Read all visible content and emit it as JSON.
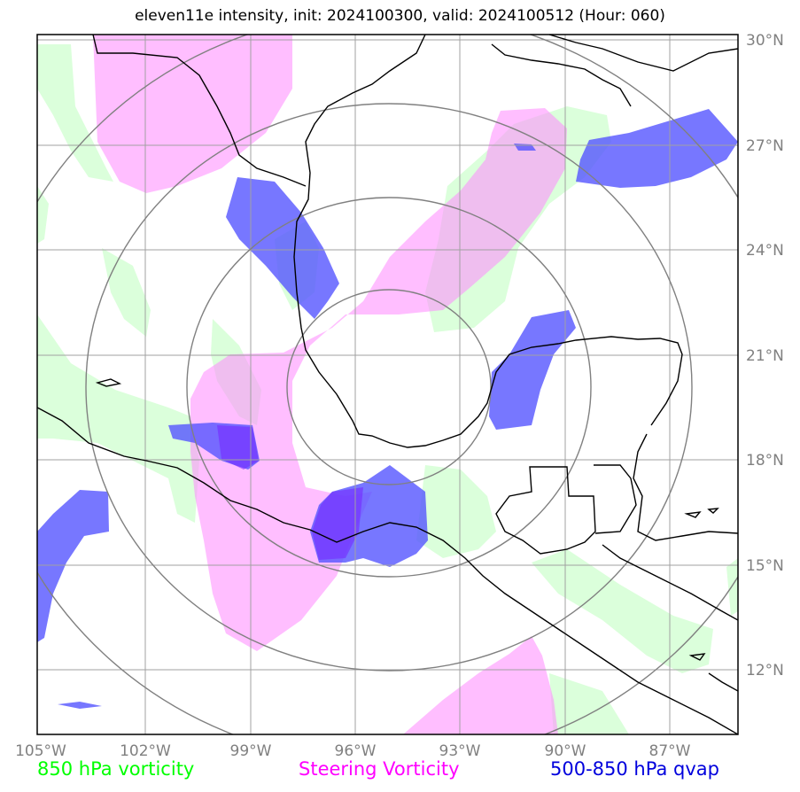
{
  "title": "eleven11e intensity, init: 2024100300, valid: 2024100512 (Hour: 060)",
  "map": {
    "lon_range": [
      -105,
      -85
    ],
    "lat_range": [
      10,
      30
    ],
    "lon_ticks": [
      -105,
      -102,
      -99,
      -96,
      -93,
      -90,
      -87
    ],
    "lon_tick_labels": [
      "105°W",
      "102°W",
      "99°W",
      "96°W",
      "93°W",
      "90°W",
      "87°W"
    ],
    "lat_ticks": [
      12,
      15,
      18,
      21,
      24,
      27,
      30
    ],
    "lat_tick_labels": [
      "12°N",
      "15°N",
      "18°N",
      "21°N",
      "24°N",
      "27°N",
      "30°N"
    ],
    "range_rings_center": [
      -95.9,
      19.9
    ],
    "range_rings_degrees": [
      3,
      6,
      9,
      12
    ],
    "colors": {
      "vort850": "#c8ffc8",
      "steering": "#ff88ff",
      "qvap": "#5555ff",
      "rings": "#808080",
      "grid": "#a0a0a0"
    }
  },
  "legend": {
    "vort850": {
      "label": "850 hPa vorticity",
      "color": "#00ff00"
    },
    "steering": {
      "label": "Steering Vorticity",
      "color": "#ff00ff"
    },
    "qvap": {
      "label": "500-850 hPa qvap",
      "color": "#0000dd"
    }
  }
}
